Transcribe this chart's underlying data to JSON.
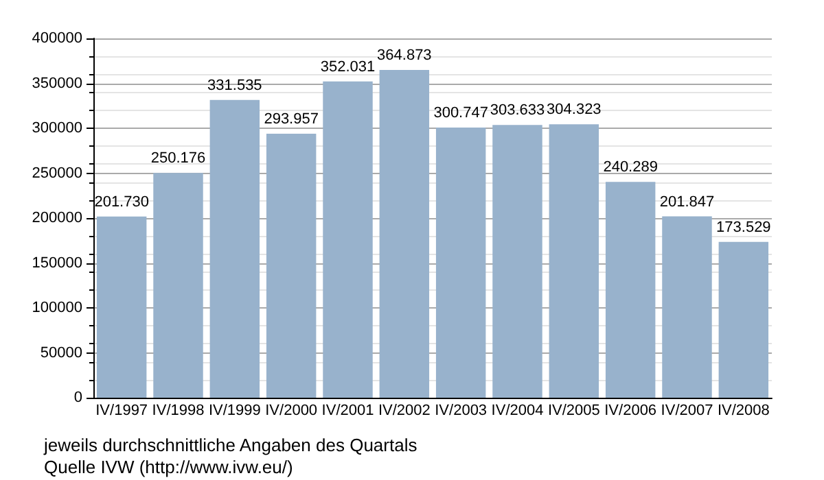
{
  "chart_data": {
    "type": "bar",
    "categories": [
      "IV/1997",
      "IV/1998",
      "IV/1999",
      "IV/2000",
      "IV/2001",
      "IV/2002",
      "IV/2003",
      "IV/2004",
      "IV/2005",
      "IV/2006",
      "IV/2007",
      "IV/2008"
    ],
    "values": [
      201730,
      250176,
      331535,
      293957,
      352031,
      364873,
      300747,
      303633,
      304323,
      240289,
      201847,
      173529
    ],
    "value_labels": [
      "201.730",
      "250.176",
      "331.535",
      "293.957",
      "352.031",
      "364.873",
      "300.747",
      "303.633",
      "304.323",
      "240.289",
      "201.847",
      "173.529"
    ],
    "color": "#98b2cc",
    "ylim": [
      0,
      400000
    ],
    "yticks": [
      0,
      50000,
      100000,
      150000,
      200000,
      250000,
      300000,
      350000,
      400000
    ],
    "grid": "y",
    "annotations": [
      "jeweils durchschnittliche Angaben des Quartals",
      "Quelle IVW (http://www.ivw.eu/)"
    ]
  }
}
